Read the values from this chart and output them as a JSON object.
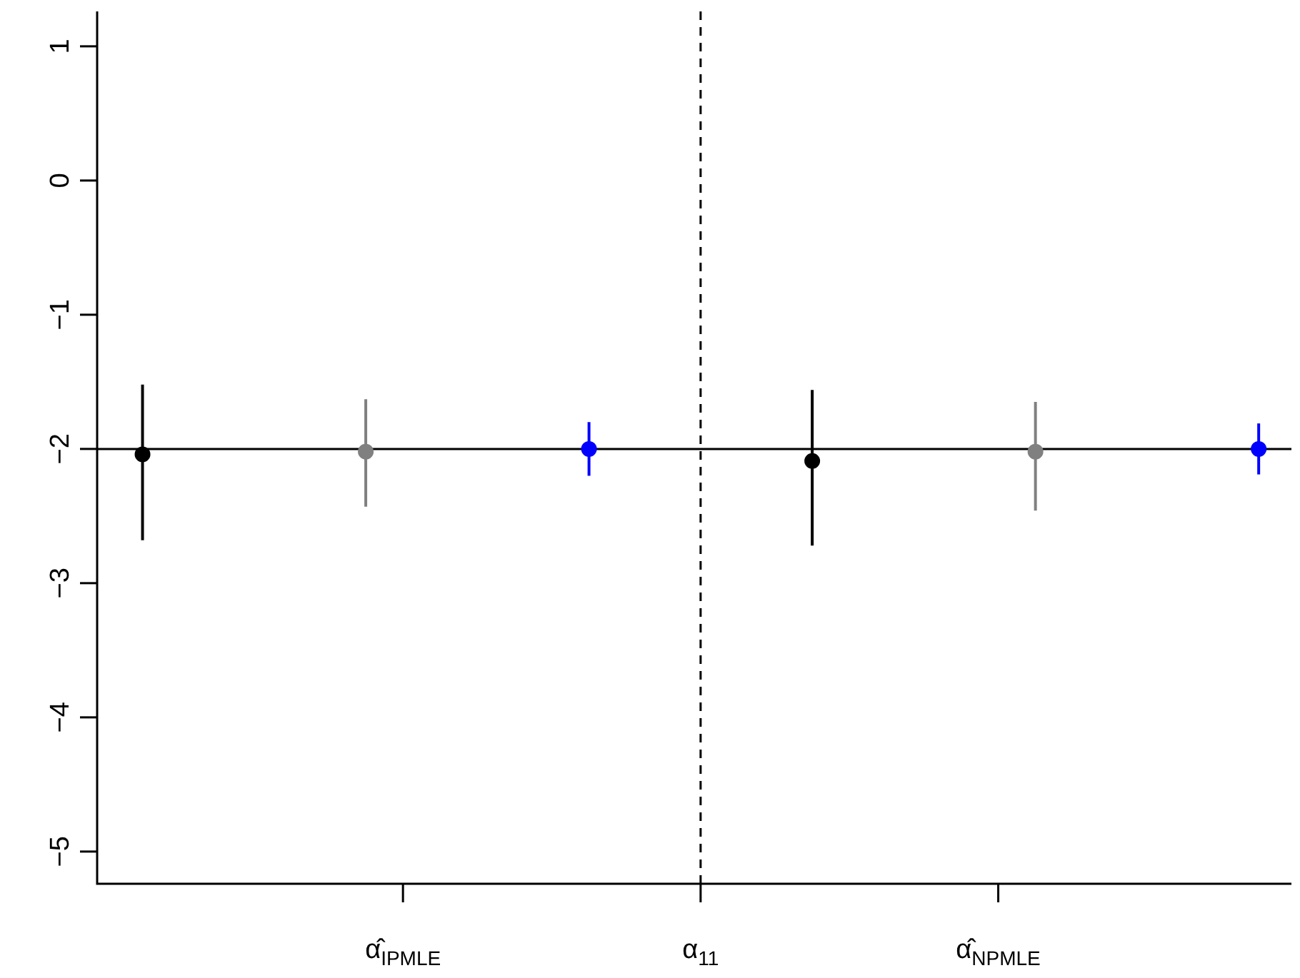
{
  "chart_data": {
    "type": "scatter",
    "categories": [
      null,
      null,
      null,
      null,
      null,
      null,
      null,
      "α̂$_{IPMLE}$",
      null,
      null,
      null,
      null,
      null,
      null,
      null,
      "α$_{11}$",
      null,
      null,
      null,
      null,
      null,
      null,
      null,
      "α̂$_{NPMLE}$",
      null,
      null,
      null,
      null,
      null,
      null,
      null
    ],
    "ylim": [
      -5.24,
      1.26
    ],
    "yticks": [
      -5,
      -4,
      -3,
      -2,
      -1,
      0,
      1
    ],
    "grid": false,
    "legend": false,
    "marker": "circle",
    "series": [
      {
        "color": "#000000",
        "values": [
          -2.04,
          null,
          null,
          null,
          null,
          null,
          null,
          null,
          null,
          null,
          null,
          null,
          null,
          null,
          null,
          null,
          null,
          null,
          -2.09,
          null,
          null,
          null,
          null,
          null,
          null,
          null,
          null,
          null,
          null,
          null,
          null
        ],
        "errors": [
          [
            -2.68,
            -1.52
          ],
          null,
          null,
          null,
          null,
          null,
          null,
          null,
          null,
          null,
          null,
          null,
          null,
          null,
          null,
          null,
          null,
          null,
          [
            -2.72,
            -1.56
          ],
          null,
          null,
          null,
          null,
          null,
          null,
          null,
          null,
          null,
          null,
          null,
          null
        ]
      },
      {
        "color": "#808080",
        "values": [
          null,
          null,
          null,
          null,
          null,
          null,
          -2.02,
          null,
          null,
          null,
          null,
          null,
          null,
          null,
          null,
          null,
          null,
          null,
          null,
          null,
          null,
          null,
          null,
          null,
          -2.02,
          null,
          null,
          null,
          null,
          null,
          null
        ],
        "errors": [
          null,
          null,
          null,
          null,
          null,
          null,
          [
            -2.43,
            -1.63
          ],
          null,
          null,
          null,
          null,
          null,
          null,
          null,
          null,
          null,
          null,
          null,
          null,
          null,
          null,
          null,
          null,
          null,
          [
            -2.46,
            -1.65
          ],
          null,
          null,
          null,
          null,
          null,
          null
        ]
      },
      {
        "color": "#0000ff",
        "values": [
          null,
          null,
          null,
          null,
          null,
          null,
          null,
          null,
          null,
          null,
          null,
          null,
          -2.0,
          null,
          null,
          null,
          null,
          null,
          null,
          null,
          null,
          null,
          null,
          null,
          null,
          null,
          null,
          null,
          null,
          null,
          -2.0
        ],
        "errors": [
          null,
          null,
          null,
          null,
          null,
          null,
          null,
          null,
          null,
          null,
          null,
          null,
          [
            -2.2,
            -1.8
          ],
          null,
          null,
          null,
          null,
          null,
          null,
          null,
          null,
          null,
          null,
          null,
          null,
          null,
          null,
          null,
          null,
          null,
          [
            -2.19,
            -1.81
          ]
        ]
      }
    ],
    "ref_lines": [
      {
        "axis": "y",
        "value": -2,
        "color": "#000000",
        "line_style": "solid"
      },
      {
        "axis": "x",
        "value": "α$_{11}$",
        "color": "#000000",
        "line_style": "dashed"
      }
    ]
  }
}
